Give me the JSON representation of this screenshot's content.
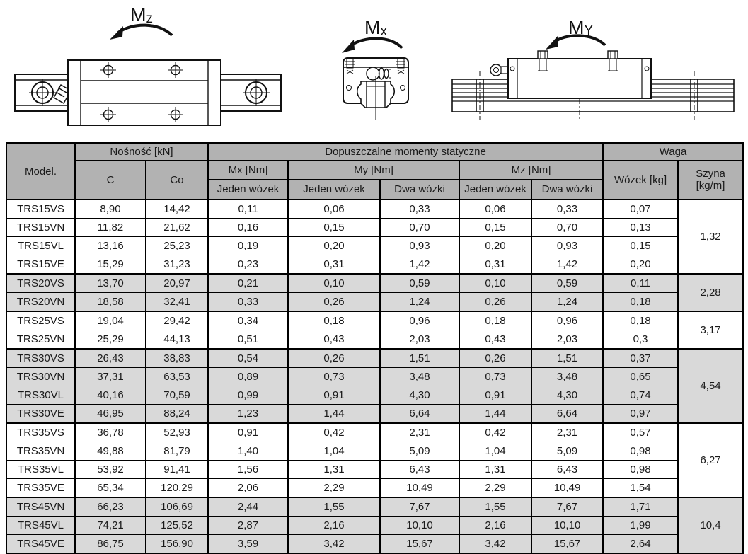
{
  "colors": {
    "page_bg": "#ffffff",
    "header_bg": "#b2b2b2",
    "shaded_row_bg": "#d9d9d9",
    "border": "#000000",
    "drawing_lines": "#111111"
  },
  "drawings": [
    {
      "name": "top-view-moment-z",
      "label_m": "M",
      "label_sub": "z"
    },
    {
      "name": "front-view-moment-x",
      "label_m": "M",
      "label_sub": "x"
    },
    {
      "name": "side-view-moment-y",
      "label_m": "M",
      "label_sub": "Y"
    }
  ],
  "table": {
    "header": {
      "model": "Model.",
      "nosnosc": "Nośność [kN]",
      "c": "C",
      "co": "Co",
      "momenty": "Dopuszczalne momenty statyczne",
      "mx": "Mx [Nm]",
      "my": "My [Nm]",
      "mz": "Mz [Nm]",
      "mx_jeden": "Jeden wózek",
      "my_jeden": "Jeden wózek",
      "my_dwa": "Dwa wózki",
      "mz_jeden": "Jeden wózek",
      "mz_dwa": "Dwa wózki",
      "waga": "Waga",
      "wozek": "Wózek [kg]",
      "szyna": "Szyna [kg/m]"
    },
    "groups": [
      {
        "szyna": "1,32",
        "shaded": false,
        "rows": [
          {
            "model": "TRS15VS",
            "c": "8,90",
            "co": "14,42",
            "mx_jeden": "0,11",
            "my_jeden": "0,06",
            "my_dwa": "0,33",
            "mz_jeden": "0,06",
            "mz_dwa": "0,33",
            "wozek": "0,07"
          },
          {
            "model": "TRS15VN",
            "c": "11,82",
            "co": "21,62",
            "mx_jeden": "0,16",
            "my_jeden": "0,15",
            "my_dwa": "0,70",
            "mz_jeden": "0,15",
            "mz_dwa": "0,70",
            "wozek": "0,13"
          },
          {
            "model": "TRS15VL",
            "c": "13,16",
            "co": "25,23",
            "mx_jeden": "0,19",
            "my_jeden": "0,20",
            "my_dwa": "0,93",
            "mz_jeden": "0,20",
            "mz_dwa": "0,93",
            "wozek": "0,15"
          },
          {
            "model": "TRS15VE",
            "c": "15,29",
            "co": "31,23",
            "mx_jeden": "0,23",
            "my_jeden": "0,31",
            "my_dwa": "1,42",
            "mz_jeden": "0,31",
            "mz_dwa": "1,42",
            "wozek": "0,20"
          }
        ]
      },
      {
        "szyna": "2,28",
        "shaded": true,
        "rows": [
          {
            "model": "TRS20VS",
            "c": "13,70",
            "co": "20,97",
            "mx_jeden": "0,21",
            "my_jeden": "0,10",
            "my_dwa": "0,59",
            "mz_jeden": "0,10",
            "mz_dwa": "0,59",
            "wozek": "0,11"
          },
          {
            "model": "TRS20VN",
            "c": "18,58",
            "co": "32,41",
            "mx_jeden": "0,33",
            "my_jeden": "0,26",
            "my_dwa": "1,24",
            "mz_jeden": "0,26",
            "mz_dwa": "1,24",
            "wozek": "0,18"
          }
        ]
      },
      {
        "szyna": "3,17",
        "shaded": false,
        "rows": [
          {
            "model": "TRS25VS",
            "c": "19,04",
            "co": "29,42",
            "mx_jeden": "0,34",
            "my_jeden": "0,18",
            "my_dwa": "0,96",
            "mz_jeden": "0,18",
            "mz_dwa": "0,96",
            "wozek": "0,18"
          },
          {
            "model": "TRS25VN",
            "c": "25,29",
            "co": "44,13",
            "mx_jeden": "0,51",
            "my_jeden": "0,43",
            "my_dwa": "2,03",
            "mz_jeden": "0,43",
            "mz_dwa": "2,03",
            "wozek": "0,3"
          }
        ]
      },
      {
        "szyna": "4,54",
        "shaded": true,
        "rows": [
          {
            "model": "TRS30VS",
            "c": "26,43",
            "co": "38,83",
            "mx_jeden": "0,54",
            "my_jeden": "0,26",
            "my_dwa": "1,51",
            "mz_jeden": "0,26",
            "mz_dwa": "1,51",
            "wozek": "0,37"
          },
          {
            "model": "TRS30VN",
            "c": "37,31",
            "co": "63,53",
            "mx_jeden": "0,89",
            "my_jeden": "0,73",
            "my_dwa": "3,48",
            "mz_jeden": "0,73",
            "mz_dwa": "3,48",
            "wozek": "0,65"
          },
          {
            "model": "TRS30VL",
            "c": "40,16",
            "co": "70,59",
            "mx_jeden": "0,99",
            "my_jeden": "0,91",
            "my_dwa": "4,30",
            "mz_jeden": "0,91",
            "mz_dwa": "4,30",
            "wozek": "0,74"
          },
          {
            "model": "TRS30VE",
            "c": "46,95",
            "co": "88,24",
            "mx_jeden": "1,23",
            "my_jeden": "1,44",
            "my_dwa": "6,64",
            "mz_jeden": "1,44",
            "mz_dwa": "6,64",
            "wozek": "0,97"
          }
        ]
      },
      {
        "szyna": "6,27",
        "shaded": false,
        "rows": [
          {
            "model": "TRS35VS",
            "c": "36,78",
            "co": "52,93",
            "mx_jeden": "0,91",
            "my_jeden": "0,42",
            "my_dwa": "2,31",
            "mz_jeden": "0,42",
            "mz_dwa": "2,31",
            "wozek": "0,57"
          },
          {
            "model": "TRS35VN",
            "c": "49,88",
            "co": "81,79",
            "mx_jeden": "1,40",
            "my_jeden": "1,04",
            "my_dwa": "5,09",
            "mz_jeden": "1,04",
            "mz_dwa": "5,09",
            "wozek": "0,98"
          },
          {
            "model": "TRS35VL",
            "c": "53,92",
            "co": "91,41",
            "mx_jeden": "1,56",
            "my_jeden": "1,31",
            "my_dwa": "6,43",
            "mz_jeden": "1,31",
            "mz_dwa": "6,43",
            "wozek": "0,98"
          },
          {
            "model": "TRS35VE",
            "c": "65,34",
            "co": "120,29",
            "mx_jeden": "2,06",
            "my_jeden": "2,29",
            "my_dwa": "10,49",
            "mz_jeden": "2,29",
            "mz_dwa": "10,49",
            "wozek": "1,54"
          }
        ]
      },
      {
        "szyna": "10,4",
        "shaded": true,
        "rows": [
          {
            "model": "TRS45VN",
            "c": "66,23",
            "co": "106,69",
            "mx_jeden": "2,44",
            "my_jeden": "1,55",
            "my_dwa": "7,67",
            "mz_jeden": "1,55",
            "mz_dwa": "7,67",
            "wozek": "1,71"
          },
          {
            "model": "TRS45VL",
            "c": "74,21",
            "co": "125,52",
            "mx_jeden": "2,87",
            "my_jeden": "2,16",
            "my_dwa": "10,10",
            "mz_jeden": "2,16",
            "mz_dwa": "10,10",
            "wozek": "1,99"
          },
          {
            "model": "TRS45VE",
            "c": "86,75",
            "co": "156,90",
            "mx_jeden": "3,59",
            "my_jeden": "3,42",
            "my_dwa": "15,67",
            "mz_jeden": "3,42",
            "mz_dwa": "15,67",
            "wozek": "2,64"
          }
        ]
      }
    ]
  }
}
